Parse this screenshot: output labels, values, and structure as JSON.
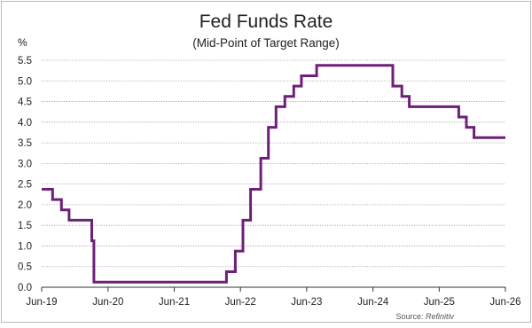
{
  "chart_data": {
    "type": "line",
    "title": "Fed Funds Rate",
    "subtitle": "(Mid-Point of Target Range)",
    "ylabel": "%",
    "xlabel": "",
    "source_label": "Source: ",
    "source_name": "Refinitiv",
    "ylim": [
      0,
      5.5
    ],
    "yticks": [
      "0.0",
      "0.5",
      "1.0",
      "1.5",
      "2.0",
      "2.5",
      "3.0",
      "3.5",
      "4.0",
      "4.5",
      "5.0",
      "5.5"
    ],
    "xlim": [
      "2019-06",
      "2026-06"
    ],
    "xticks": [
      "Jun-19",
      "Jun-20",
      "Jun-21",
      "Jun-22",
      "Jun-23",
      "Jun-24",
      "Jun-25",
      "Jun-26"
    ],
    "grid": "horizontal dotted",
    "line_color": "#6d2077",
    "series": [
      {
        "values": [
          {
            "x": "2019-06-01",
            "y": 2.375
          },
          {
            "x": "2019-07-31",
            "y": 2.125
          },
          {
            "x": "2019-09-18",
            "y": 1.875
          },
          {
            "x": "2019-10-30",
            "y": 1.625
          },
          {
            "x": "2020-03-03",
            "y": 1.125
          },
          {
            "x": "2020-03-15",
            "y": 0.125
          },
          {
            "x": "2022-03-16",
            "y": 0.375
          },
          {
            "x": "2022-05-04",
            "y": 0.875
          },
          {
            "x": "2022-06-15",
            "y": 1.625
          },
          {
            "x": "2022-07-27",
            "y": 2.375
          },
          {
            "x": "2022-09-21",
            "y": 3.125
          },
          {
            "x": "2022-11-02",
            "y": 3.875
          },
          {
            "x": "2022-12-14",
            "y": 4.375
          },
          {
            "x": "2023-02-01",
            "y": 4.625
          },
          {
            "x": "2023-03-22",
            "y": 4.875
          },
          {
            "x": "2023-05-03",
            "y": 5.125
          },
          {
            "x": "2023-07-26",
            "y": 5.375
          },
          {
            "x": "2024-09-18",
            "y": 4.875
          },
          {
            "x": "2024-11-07",
            "y": 4.625
          },
          {
            "x": "2024-12-18",
            "y": 4.375
          },
          {
            "x": "2025-09-17",
            "y": 4.125
          },
          {
            "x": "2025-10-29",
            "y": 3.875
          },
          {
            "x": "2025-12-10",
            "y": 3.625
          },
          {
            "x": "2026-06-01",
            "y": 3.625
          }
        ]
      }
    ]
  }
}
